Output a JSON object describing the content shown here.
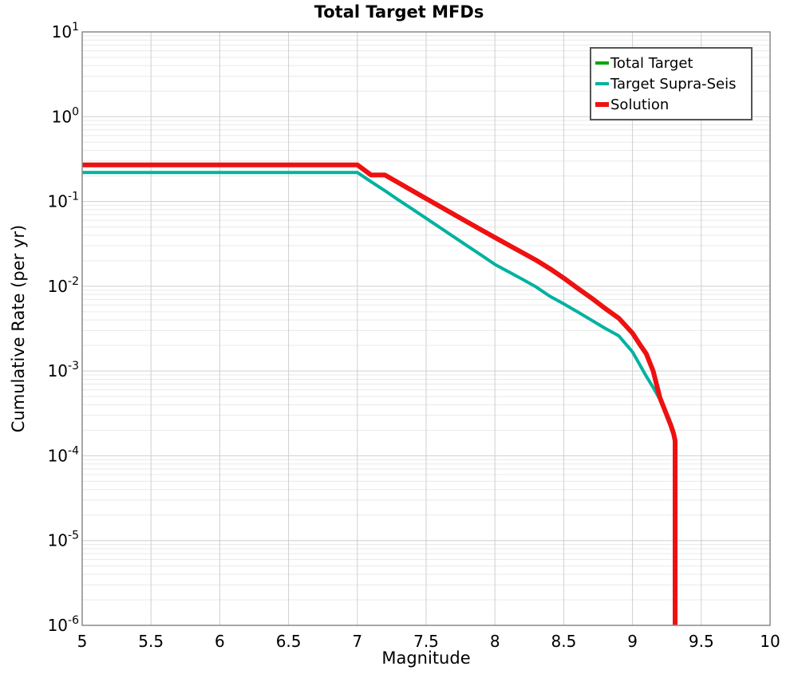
{
  "figure": {
    "title": "Total Target MFDs",
    "xlabel": "Magnitude",
    "ylabel": "Cumulative Rate (per yr)"
  },
  "chart_data": {
    "type": "line",
    "title": "Total Target MFDs",
    "xlabel": "Magnitude",
    "ylabel": "Cumulative Rate (per yr)",
    "x_range": [
      5,
      10
    ],
    "y_scale": "log",
    "y_range_log10": [
      -6,
      1
    ],
    "x_tick_values": [
      5,
      5.5,
      6,
      6.5,
      7,
      7.5,
      8,
      8.5,
      9,
      9.5,
      10
    ],
    "x_tick_labels": [
      "5",
      "5.5",
      "6",
      "6.5",
      "7",
      "7.5",
      "8",
      "8.5",
      "9",
      "9.5",
      "10"
    ],
    "y_tick_exponents": [
      1,
      0,
      -1,
      -2,
      -3,
      -4,
      -5,
      -6
    ],
    "grid": {
      "major_color": "#CFCFCF",
      "minor_color": "#E9E9E9",
      "minor_log_multiples": [
        2,
        3,
        4,
        5,
        6,
        7,
        8,
        9
      ]
    },
    "border_color": "#8A8A8A",
    "background": "#FFFFFF",
    "legend_position": "top-right",
    "series": [
      {
        "name": "Total Target",
        "color": "#00A600",
        "width": 4,
        "note": "identical to Solution curve, fully overlapped in plot",
        "points": [
          [
            5.0,
            0.27
          ],
          [
            7.0,
            0.27
          ],
          [
            7.1,
            0.205
          ],
          [
            7.2,
            0.205
          ],
          [
            7.3,
            0.166
          ],
          [
            7.4,
            0.134
          ],
          [
            7.5,
            0.108
          ],
          [
            7.6,
            0.0875
          ],
          [
            7.7,
            0.0707
          ],
          [
            7.8,
            0.0572
          ],
          [
            7.9,
            0.0463
          ],
          [
            8.0,
            0.0375
          ],
          [
            8.1,
            0.0306
          ],
          [
            8.2,
            0.0249
          ],
          [
            8.3,
            0.0203
          ],
          [
            8.4,
            0.0161
          ],
          [
            8.5,
            0.0125
          ],
          [
            8.6,
            0.0095
          ],
          [
            8.7,
            0.0073
          ],
          [
            8.8,
            0.0055
          ],
          [
            8.9,
            0.0042
          ],
          [
            9.0,
            0.0028
          ],
          [
            9.05,
            0.0021
          ],
          [
            9.1,
            0.0016
          ],
          [
            9.15,
            0.001
          ],
          [
            9.2,
            0.00048
          ],
          [
            9.25,
            0.0003
          ],
          [
            9.28,
            0.000225
          ],
          [
            9.3,
            0.00018
          ],
          [
            9.31,
            0.00015
          ],
          [
            9.31,
            1e-06
          ]
        ]
      },
      {
        "name": "Target Supra-Seis",
        "color": "#00B2A0",
        "width": 4,
        "points": [
          [
            5.0,
            0.22
          ],
          [
            7.0,
            0.22
          ],
          [
            7.1,
            0.171
          ],
          [
            7.2,
            0.134
          ],
          [
            7.3,
            0.104
          ],
          [
            7.4,
            0.0812
          ],
          [
            7.5,
            0.0633
          ],
          [
            7.6,
            0.0493
          ],
          [
            7.7,
            0.0384
          ],
          [
            7.8,
            0.0299
          ],
          [
            7.9,
            0.0233
          ],
          [
            8.0,
            0.0181
          ],
          [
            8.1,
            0.0148
          ],
          [
            8.2,
            0.0121
          ],
          [
            8.3,
            0.0098
          ],
          [
            8.4,
            0.0076
          ],
          [
            8.5,
            0.0062
          ],
          [
            8.6,
            0.005
          ],
          [
            8.7,
            0.004
          ],
          [
            8.8,
            0.0032
          ],
          [
            8.9,
            0.0026
          ],
          [
            9.0,
            0.00168
          ],
          [
            9.05,
            0.00121
          ],
          [
            9.1,
            0.00087
          ],
          [
            9.15,
            0.00064
          ],
          [
            9.2,
            0.00046
          ],
          [
            9.25,
            0.000315
          ],
          [
            9.28,
            0.00024
          ],
          [
            9.3,
            0.000195
          ]
        ]
      },
      {
        "name": "Solution",
        "color": "#EE1111",
        "width": 6,
        "points": [
          [
            5.0,
            0.27
          ],
          [
            7.0,
            0.27
          ],
          [
            7.1,
            0.205
          ],
          [
            7.2,
            0.205
          ],
          [
            7.3,
            0.166
          ],
          [
            7.4,
            0.134
          ],
          [
            7.5,
            0.108
          ],
          [
            7.6,
            0.0875
          ],
          [
            7.7,
            0.0707
          ],
          [
            7.8,
            0.0572
          ],
          [
            7.9,
            0.0463
          ],
          [
            8.0,
            0.0375
          ],
          [
            8.1,
            0.0306
          ],
          [
            8.2,
            0.0249
          ],
          [
            8.3,
            0.0203
          ],
          [
            8.4,
            0.0161
          ],
          [
            8.5,
            0.0125
          ],
          [
            8.6,
            0.0095
          ],
          [
            8.7,
            0.0073
          ],
          [
            8.8,
            0.0055
          ],
          [
            8.9,
            0.0042
          ],
          [
            9.0,
            0.0028
          ],
          [
            9.05,
            0.0021
          ],
          [
            9.1,
            0.0016
          ],
          [
            9.15,
            0.001
          ],
          [
            9.2,
            0.00048
          ],
          [
            9.25,
            0.0003
          ],
          [
            9.28,
            0.000225
          ],
          [
            9.3,
            0.00018
          ],
          [
            9.31,
            0.00015
          ],
          [
            9.31,
            1e-06
          ]
        ]
      }
    ]
  }
}
